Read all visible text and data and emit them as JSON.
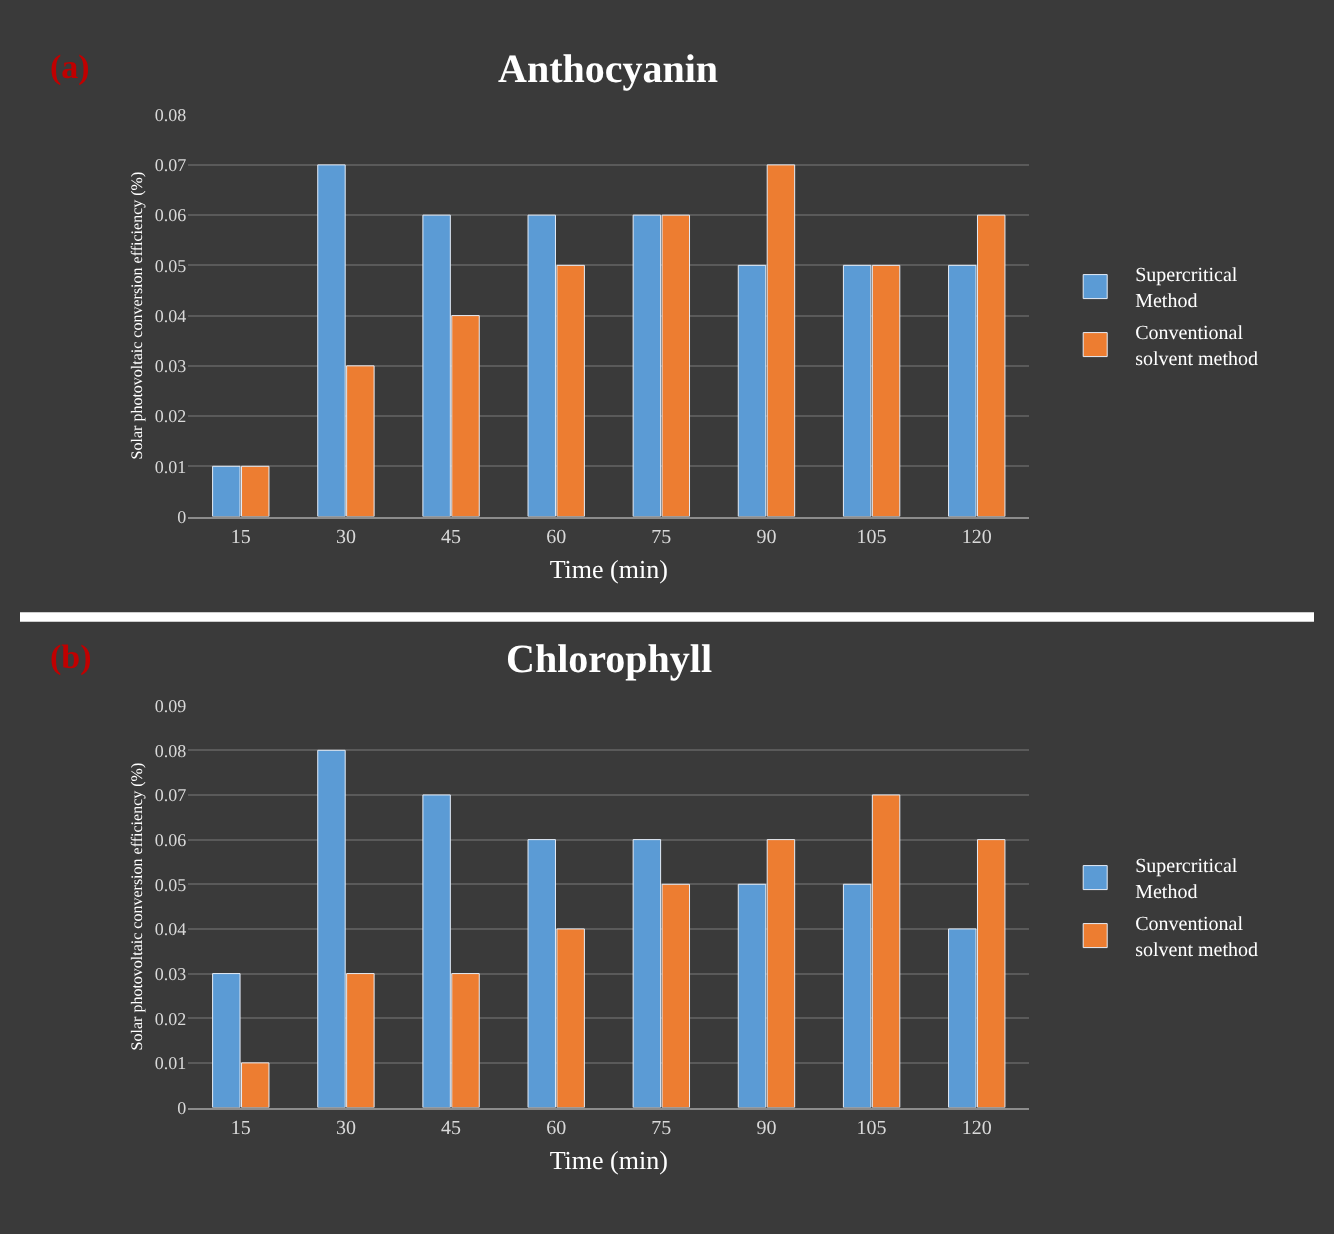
{
  "chart_data": [
    {
      "type": "bar",
      "title": "Anthocyanin",
      "xlabel": "Time (min)",
      "ylabel": "Solar photovoltaic conversion efficiency (%)",
      "annotations": [
        "(a)"
      ],
      "categories": [
        "15",
        "30",
        "45",
        "60",
        "75",
        "90",
        "105",
        "120"
      ],
      "series": [
        {
          "name": "Supercritical Method",
          "color": "#5b9bd5",
          "values": [
            0.01,
            0.07,
            0.06,
            0.06,
            0.06,
            0.05,
            0.05,
            0.05
          ]
        },
        {
          "name": "Conventional solvent method",
          "color": "#ed7d31",
          "values": [
            0.01,
            0.03,
            0.04,
            0.05,
            0.06,
            0.07,
            0.05,
            0.06
          ]
        }
      ],
      "ylim": [
        0,
        0.08
      ],
      "yticks": [
        0,
        0.01,
        0.02,
        0.03,
        0.04,
        0.05,
        0.06,
        0.07,
        0.08
      ],
      "grid": "y",
      "legend": "right"
    },
    {
      "type": "bar",
      "title": "Chlorophyll",
      "xlabel": "Time (min)",
      "ylabel": "Solar photovoltaic conversion efficiency (%)",
      "annotations": [
        "(b)"
      ],
      "categories": [
        "15",
        "30",
        "45",
        "60",
        "75",
        "90",
        "105",
        "120"
      ],
      "series": [
        {
          "name": "Supercritical Method",
          "color": "#5b9bd5",
          "values": [
            0.03,
            0.08,
            0.07,
            0.06,
            0.06,
            0.05,
            0.05,
            0.04
          ]
        },
        {
          "name": "Conventional solvent method",
          "color": "#ed7d31",
          "values": [
            0.01,
            0.03,
            0.03,
            0.04,
            0.05,
            0.06,
            0.07,
            0.06
          ]
        }
      ],
      "ylim": [
        0,
        0.09
      ],
      "yticks": [
        0,
        0.01,
        0.02,
        0.03,
        0.04,
        0.05,
        0.06,
        0.07,
        0.08,
        0.09
      ],
      "grid": "y",
      "legend": "right"
    }
  ]
}
